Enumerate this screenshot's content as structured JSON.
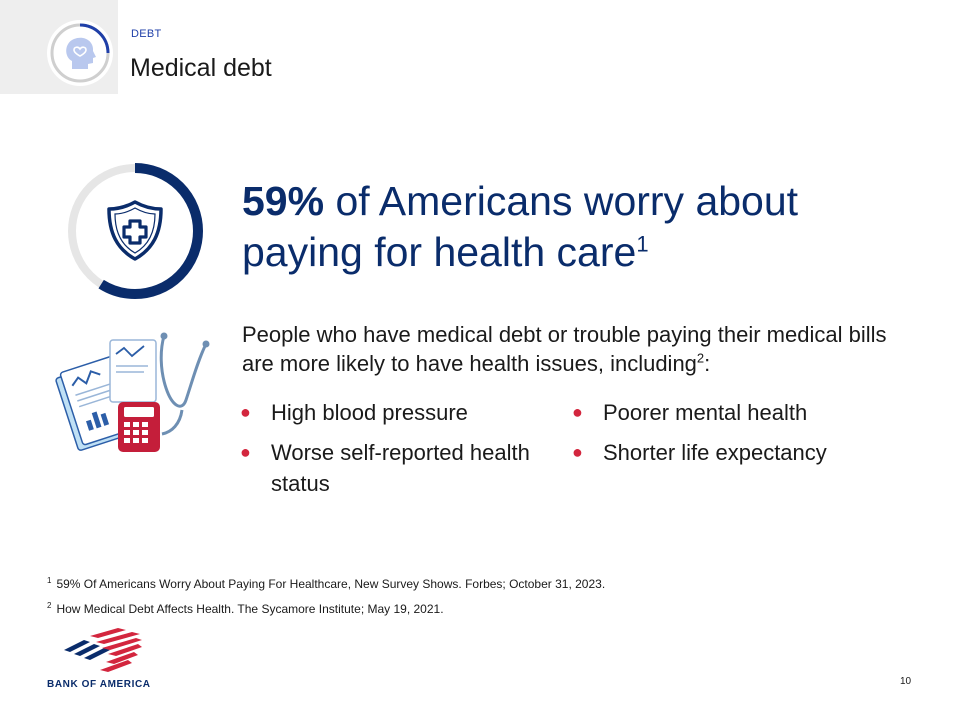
{
  "header": {
    "section_label": "DEBT",
    "title": "Medical debt"
  },
  "headline": {
    "stat": "59%",
    "text": " of Americans worry about paying for health care",
    "footnote_ref": "1"
  },
  "stat_ring": {
    "percent": 59,
    "icon": "shield-cross-icon"
  },
  "body": {
    "intro": "People who have medical debt or trouble paying their medical bills are more likely to have health issues, including",
    "intro_footnote_ref": "2",
    "intro_end": ":",
    "illustration_icon": "medical-bills-stethoscope-icon",
    "bullets_left": [
      "High blood pressure",
      "Worse self-reported health status"
    ],
    "bullets_right": [
      "Poorer mental health",
      "Shorter life expectancy"
    ]
  },
  "footnotes": [
    {
      "num": "1",
      "text": "59% Of Americans Worry About Paying For Healthcare, New Survey Shows. Forbes; October 31, 2023."
    },
    {
      "num": "2",
      "text": "How Medical Debt Affects Health. The Sycamore Institute; May 19, 2021."
    }
  ],
  "logo": {
    "text": "BANK OF AMERICA"
  },
  "page_number": "10",
  "colors": {
    "navy": "#0a2c6b",
    "accent_blue": "#1f3fa8",
    "bullet_red": "#d3263e",
    "ring_track": "#e6e6e6"
  }
}
